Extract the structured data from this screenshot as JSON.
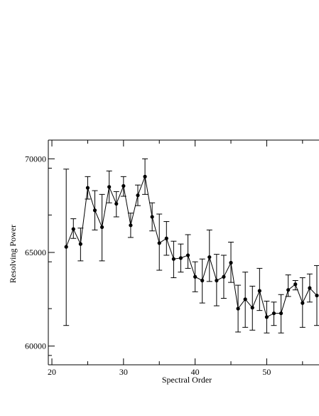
{
  "chart_data": {
    "type": "line",
    "xlabel": "Spectral Order",
    "ylabel": "Resolving Power",
    "xlim": [
      19.5,
      57.3
    ],
    "ylim": [
      59000,
      71000
    ],
    "x_ticks": [
      20,
      30,
      40,
      50
    ],
    "y_ticks": [
      60000,
      65000,
      70000
    ],
    "x_tick_labels": [
      "20",
      "30",
      "40",
      "50"
    ],
    "y_tick_labels": [
      "60000",
      "65000",
      "70000"
    ],
    "grid": false,
    "line_color": "#000000",
    "marker": "filled-circle",
    "series": [
      {
        "x": [
          22,
          23,
          24,
          25,
          26,
          27,
          28,
          29,
          30,
          31,
          32,
          33,
          34,
          35,
          36,
          37,
          38,
          39,
          40,
          41,
          42,
          43,
          44,
          45,
          46,
          47,
          48,
          49,
          50,
          51,
          52,
          53,
          54,
          55,
          56,
          57
        ],
        "y": [
          65300,
          66250,
          65450,
          68450,
          67250,
          66350,
          68500,
          67600,
          68550,
          66450,
          68050,
          69050,
          66900,
          65500,
          65750,
          64650,
          64700,
          64850,
          63700,
          63500,
          64750,
          63500,
          63700,
          64450,
          62000,
          62500,
          62050,
          62950,
          61550,
          61750,
          61750,
          63000,
          63300,
          62300,
          63100,
          62700
        ],
        "err_low": [
          61100,
          65750,
          64550,
          67850,
          66200,
          64550,
          67650,
          66900,
          68000,
          65800,
          67500,
          68100,
          66150,
          64050,
          64850,
          63650,
          63950,
          64150,
          62900,
          62300,
          63450,
          62150,
          62550,
          63400,
          60750,
          61000,
          60850,
          61900,
          60700,
          61100,
          60700,
          62650,
          63000,
          61000,
          62350,
          61100
        ],
        "err_high": [
          69450,
          66800,
          66300,
          69050,
          68300,
          68100,
          69350,
          68250,
          69050,
          67100,
          68600,
          70000,
          67650,
          67050,
          66650,
          65600,
          65450,
          65950,
          64500,
          64650,
          66200,
          64900,
          64850,
          65550,
          63250,
          63950,
          63200,
          64150,
          62400,
          62350,
          62750,
          63800,
          63500,
          63650,
          63850,
          64300
        ]
      }
    ]
  }
}
